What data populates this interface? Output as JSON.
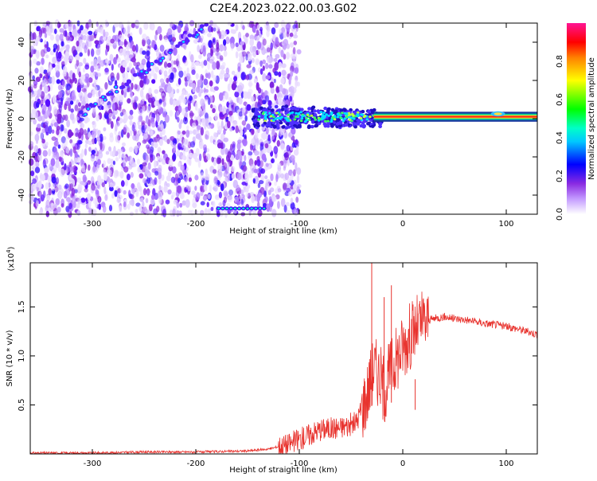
{
  "figure": {
    "title": "C2E4.2023.022.00.03.G02"
  },
  "chart_data": [
    {
      "type": "heatmap",
      "xlabel": "Height of straight line (km)",
      "ylabel": "Frequency (Hz)",
      "xlim": [
        -360,
        130
      ],
      "ylim": [
        -50,
        50
      ],
      "xticks": [
        -300,
        -200,
        -100,
        0,
        100
      ],
      "yticks": [
        -40,
        -20,
        0,
        20,
        40
      ],
      "grid": false,
      "colorbar": {
        "label": "Normalized spectral amplitude",
        "range": [
          0,
          1
        ],
        "ticks": [
          "0.0",
          "0.2",
          "0.4",
          "0.6",
          "0.8"
        ],
        "colors": [
          "#ffffff",
          "#8a2be2",
          "#0000ff",
          "#00ffff",
          "#00ff00",
          "#ffff00",
          "#ff0000",
          "#ff1493"
        ]
      },
      "features": [
        {
          "name": "noise region",
          "x_range": [
            -360,
            -120
          ],
          "freq_range": [
            -50,
            50
          ]
        },
        {
          "name": "tone band",
          "x_range": [
            -140,
            130
          ],
          "freq": 1
        }
      ]
    },
    {
      "type": "line",
      "xlabel": "Height of straight line (km)",
      "ylabel": "SNR (10 * v/v)",
      "scale_label": "(x10",
      "scale_exp": "4",
      "scale_close": ")",
      "xlim": [
        -360,
        130
      ],
      "ylim": [
        0,
        1.95
      ],
      "xticks": [
        -300,
        -200,
        -100,
        0,
        100
      ],
      "yticks": [
        "0.5",
        "1.0",
        "1.5"
      ],
      "color": "#e8332e",
      "x": [
        -360,
        -300,
        -250,
        -200,
        -150,
        -130,
        -110,
        -100,
        -80,
        -60,
        -45,
        -35,
        -28,
        -22,
        -18,
        -12,
        -5,
        0,
        10,
        20,
        30,
        40,
        50,
        60,
        70,
        80,
        90,
        100,
        110,
        120,
        130
      ],
      "y": [
        0.01,
        0.01,
        0.02,
        0.02,
        0.03,
        0.05,
        0.1,
        0.15,
        0.25,
        0.27,
        0.32,
        0.6,
        0.9,
        0.8,
        0.65,
        0.85,
        1.0,
        1.1,
        1.25,
        1.35,
        1.38,
        1.4,
        1.38,
        1.37,
        1.35,
        1.33,
        1.32,
        1.3,
        1.28,
        1.25,
        1.22
      ],
      "spikes": [
        {
          "x": -30,
          "y": 1.95
        },
        {
          "x": -18,
          "y": 1.6
        },
        {
          "x": -11,
          "y": 1.72
        },
        {
          "x": 12,
          "y": 0.45
        }
      ]
    }
  ]
}
